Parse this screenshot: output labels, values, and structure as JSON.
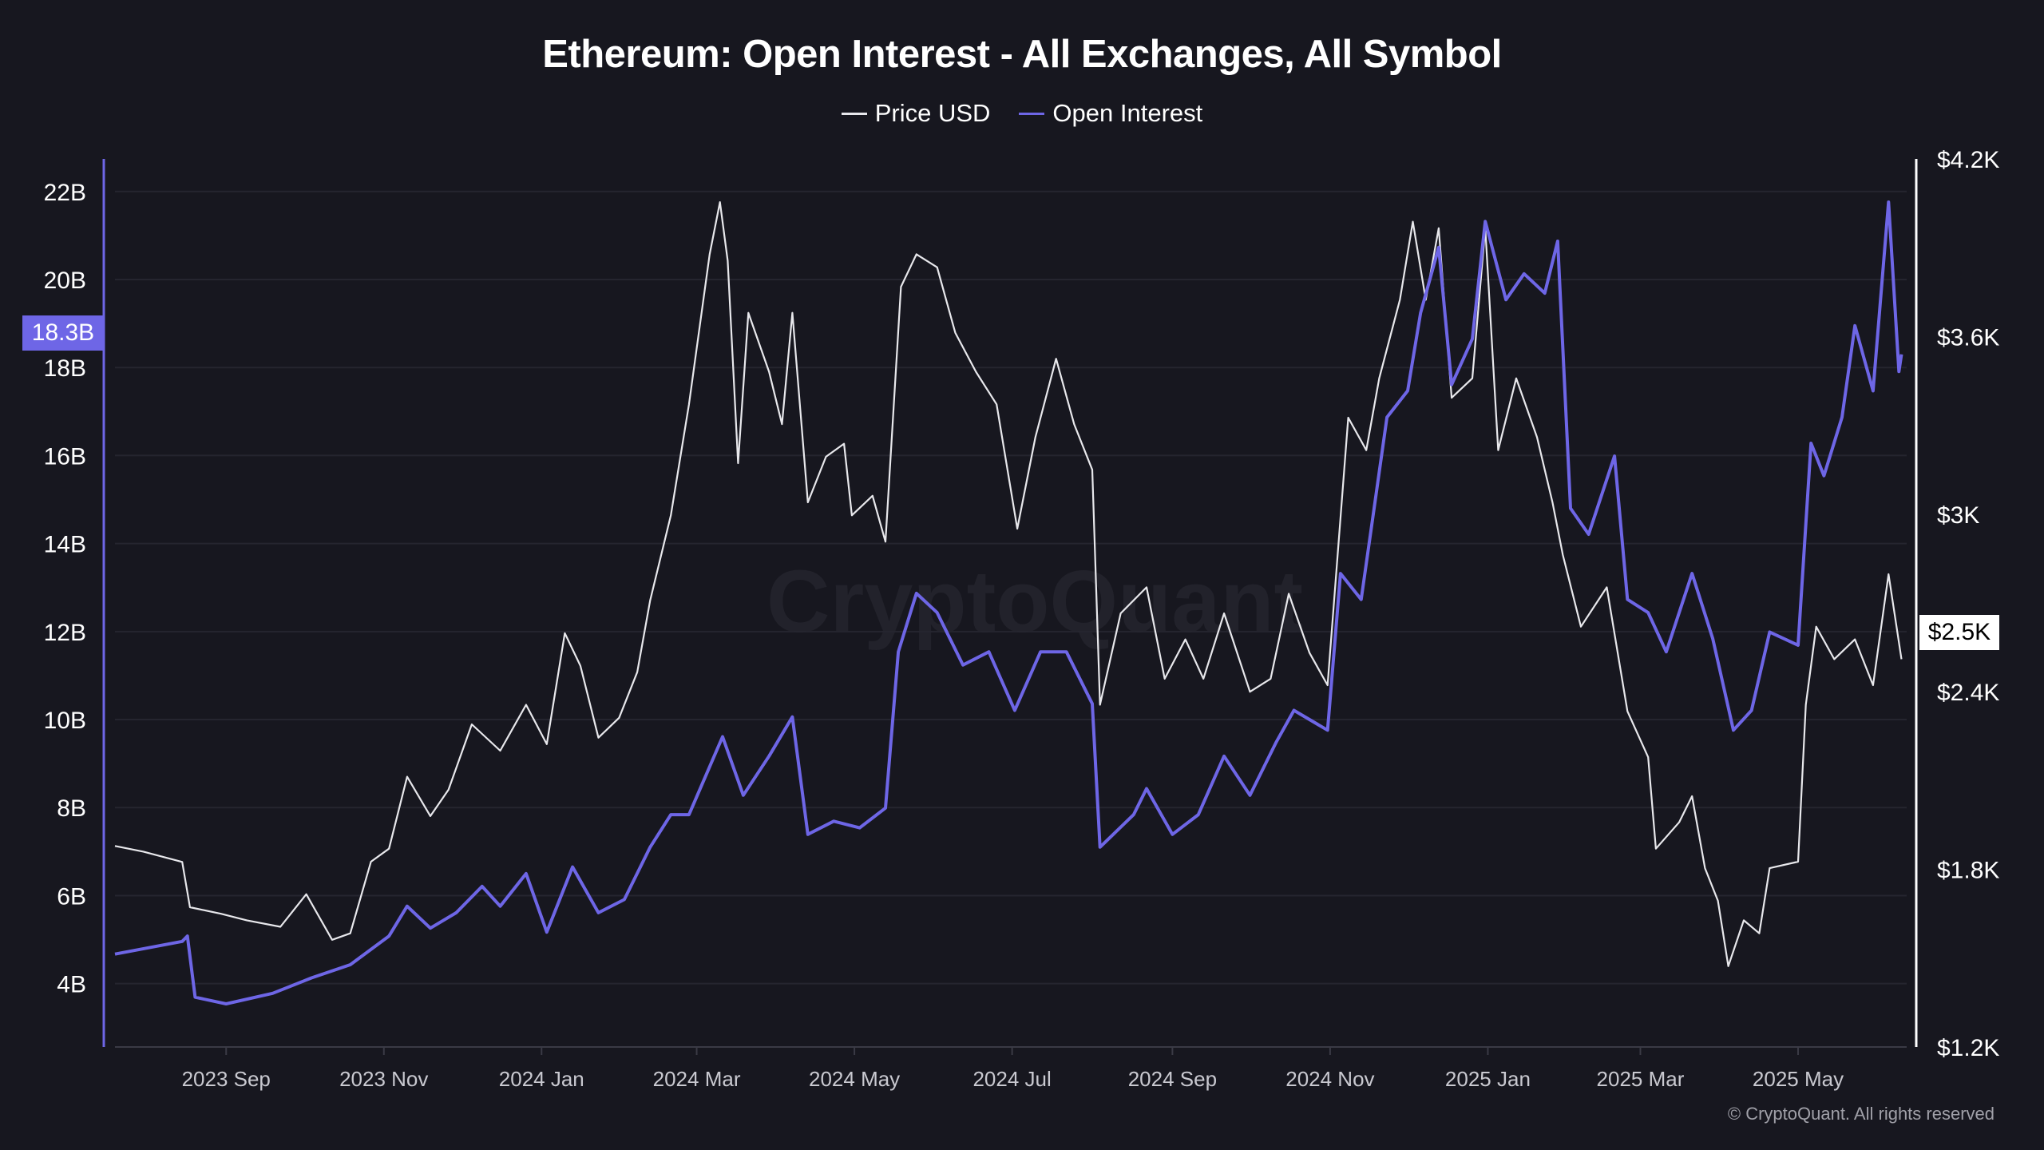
{
  "chart_data": {
    "type": "line",
    "title": "Ethereum: Open Interest - All Exchanges, All Symbol",
    "legend_placement": "top-center",
    "grid": true,
    "x_range": [
      "2023-07-20",
      "2025-06-12"
    ],
    "x_ticks": [
      "2023 Sep",
      "2023 Nov",
      "2024 Jan",
      "2024 Mar",
      "2024 May",
      "2024 Jul",
      "2024 Sep",
      "2024 Nov",
      "2025 Jan",
      "2025 Mar",
      "2025 May"
    ],
    "x_tick_dates": [
      "2023-09-01",
      "2023-11-01",
      "2024-01-01",
      "2024-03-01",
      "2024-05-01",
      "2024-07-01",
      "2024-09-01",
      "2024-11-01",
      "2025-01-01",
      "2025-03-01",
      "2025-05-01"
    ],
    "left_axis": {
      "ticks": [
        "4B",
        "6B",
        "8B",
        "10B",
        "12B",
        "14B",
        "16B",
        "18B",
        "20B",
        "22B"
      ],
      "tick_values": [
        4,
        6,
        8,
        10,
        12,
        14,
        16,
        18,
        20,
        22
      ],
      "range": [
        2.56,
        22.74
      ],
      "unit": "B USD",
      "color": "#6e66e6"
    },
    "right_axis": {
      "ticks": [
        "$1.2K",
        "$1.8K",
        "$2.4K",
        "$3K",
        "$3.6K",
        "$4.2K"
      ],
      "tick_values": [
        1200,
        1800,
        2400,
        3000,
        3600,
        4200
      ],
      "range": [
        1200,
        4200
      ],
      "color": "#ffffff"
    },
    "series": [
      {
        "name": "Price USD",
        "axis": "right",
        "color": "#e8e8ec",
        "points": [
          [
            "2023-07-20",
            1879
          ],
          [
            "2023-07-31",
            1860
          ],
          [
            "2023-08-15",
            1825
          ],
          [
            "2023-08-18",
            1672
          ],
          [
            "2023-08-30",
            1650
          ],
          [
            "2023-09-09",
            1628
          ],
          [
            "2023-09-22",
            1606
          ],
          [
            "2023-10-02",
            1716
          ],
          [
            "2023-10-12",
            1562
          ],
          [
            "2023-10-19",
            1584
          ],
          [
            "2023-10-27",
            1826
          ],
          [
            "2023-11-03",
            1870
          ],
          [
            "2023-11-10",
            2113
          ],
          [
            "2023-11-19",
            1980
          ],
          [
            "2023-11-26",
            2069
          ],
          [
            "2023-12-05",
            2290
          ],
          [
            "2023-12-16",
            2201
          ],
          [
            "2023-12-26",
            2356
          ],
          [
            "2024-01-03",
            2223
          ],
          [
            "2024-01-10",
            2598
          ],
          [
            "2024-01-16",
            2488
          ],
          [
            "2024-01-23",
            2245
          ],
          [
            "2024-01-31",
            2312
          ],
          [
            "2024-02-07",
            2466
          ],
          [
            "2024-02-12",
            2709
          ],
          [
            "2024-02-20",
            2996
          ],
          [
            "2024-02-27",
            3371
          ],
          [
            "2024-03-06",
            3878
          ],
          [
            "2024-03-10",
            4054
          ],
          [
            "2024-03-13",
            3856
          ],
          [
            "2024-03-17",
            3172
          ],
          [
            "2024-03-21",
            3680
          ],
          [
            "2024-03-29",
            3481
          ],
          [
            "2024-04-03",
            3304
          ],
          [
            "2024-04-07",
            3680
          ],
          [
            "2024-04-13",
            3040
          ],
          [
            "2024-04-20",
            3194
          ],
          [
            "2024-04-27",
            3238
          ],
          [
            "2024-04-30",
            2996
          ],
          [
            "2024-05-08",
            3062
          ],
          [
            "2024-05-13",
            2907
          ],
          [
            "2024-05-19",
            3768
          ],
          [
            "2024-05-25",
            3878
          ],
          [
            "2024-06-02",
            3834
          ],
          [
            "2024-06-09",
            3613
          ],
          [
            "2024-06-17",
            3481
          ],
          [
            "2024-06-25",
            3371
          ],
          [
            "2024-07-03",
            2951
          ],
          [
            "2024-07-10",
            3260
          ],
          [
            "2024-07-18",
            3525
          ],
          [
            "2024-07-25",
            3304
          ],
          [
            "2024-08-01",
            3150
          ],
          [
            "2024-08-04",
            2356
          ],
          [
            "2024-08-12",
            2665
          ],
          [
            "2024-08-22",
            2753
          ],
          [
            "2024-08-29",
            2444
          ],
          [
            "2024-09-06",
            2577
          ],
          [
            "2024-09-13",
            2444
          ],
          [
            "2024-09-21",
            2665
          ],
          [
            "2024-10-01",
            2400
          ],
          [
            "2024-10-09",
            2444
          ],
          [
            "2024-10-16",
            2731
          ],
          [
            "2024-10-24",
            2532
          ],
          [
            "2024-10-31",
            2422
          ],
          [
            "2024-11-08",
            3326
          ],
          [
            "2024-11-15",
            3216
          ],
          [
            "2024-11-20",
            3459
          ],
          [
            "2024-11-28",
            3724
          ],
          [
            "2024-12-03",
            3988
          ],
          [
            "2024-12-08",
            3724
          ],
          [
            "2024-12-13",
            3966
          ],
          [
            "2024-12-18",
            3393
          ],
          [
            "2024-12-26",
            3459
          ],
          [
            "2024-12-31",
            3966
          ],
          [
            "2025-01-05",
            3216
          ],
          [
            "2025-01-12",
            3459
          ],
          [
            "2025-01-20",
            3260
          ],
          [
            "2025-01-26",
            3040
          ],
          [
            "2025-01-30",
            2863
          ],
          [
            "2025-02-06",
            2620
          ],
          [
            "2025-02-16",
            2753
          ],
          [
            "2025-02-24",
            2334
          ],
          [
            "2025-03-04",
            2179
          ],
          [
            "2025-03-07",
            1870
          ],
          [
            "2025-03-16",
            1959
          ],
          [
            "2025-03-21",
            2047
          ],
          [
            "2025-03-26",
            1804
          ],
          [
            "2025-03-31",
            1694
          ],
          [
            "2025-04-04",
            1473
          ],
          [
            "2025-04-10",
            1628
          ],
          [
            "2025-04-16",
            1584
          ],
          [
            "2025-04-20",
            1804
          ],
          [
            "2025-05-01",
            1826
          ],
          [
            "2025-05-04",
            2356
          ],
          [
            "2025-05-08",
            2620
          ],
          [
            "2025-05-15",
            2510
          ],
          [
            "2025-05-23",
            2577
          ],
          [
            "2025-05-30",
            2422
          ],
          [
            "2025-06-05",
            2797
          ],
          [
            "2025-06-10",
            2510
          ]
        ]
      },
      {
        "name": "Open Interest",
        "axis": "left",
        "color": "#6e66e6",
        "points": [
          [
            "2023-07-20",
            4.67
          ],
          [
            "2023-08-15",
            4.96
          ],
          [
            "2023-08-17",
            5.08
          ],
          [
            "2023-08-20",
            3.69
          ],
          [
            "2023-09-01",
            3.54
          ],
          [
            "2023-09-19",
            3.78
          ],
          [
            "2023-10-04",
            4.13
          ],
          [
            "2023-10-19",
            4.43
          ],
          [
            "2023-11-03",
            5.08
          ],
          [
            "2023-11-10",
            5.76
          ],
          [
            "2023-11-19",
            5.26
          ],
          [
            "2023-11-29",
            5.61
          ],
          [
            "2023-12-09",
            6.21
          ],
          [
            "2023-12-16",
            5.76
          ],
          [
            "2023-12-26",
            6.5
          ],
          [
            "2024-01-03",
            5.17
          ],
          [
            "2024-01-13",
            6.65
          ],
          [
            "2024-01-23",
            5.61
          ],
          [
            "2024-02-02",
            5.91
          ],
          [
            "2024-02-12",
            7.1
          ],
          [
            "2024-02-20",
            7.84
          ],
          [
            "2024-02-27",
            7.84
          ],
          [
            "2024-03-11",
            9.61
          ],
          [
            "2024-03-19",
            8.28
          ],
          [
            "2024-03-29",
            9.17
          ],
          [
            "2024-04-07",
            10.06
          ],
          [
            "2024-04-13",
            7.39
          ],
          [
            "2024-04-23",
            7.69
          ],
          [
            "2024-05-03",
            7.54
          ],
          [
            "2024-05-13",
            7.99
          ],
          [
            "2024-05-18",
            11.54
          ],
          [
            "2024-05-25",
            12.87
          ],
          [
            "2024-06-02",
            12.43
          ],
          [
            "2024-06-12",
            11.24
          ],
          [
            "2024-06-22",
            11.54
          ],
          [
            "2024-07-02",
            10.21
          ],
          [
            "2024-07-12",
            11.54
          ],
          [
            "2024-07-22",
            11.54
          ],
          [
            "2024-08-01",
            10.36
          ],
          [
            "2024-08-04",
            7.1
          ],
          [
            "2024-08-17",
            7.84
          ],
          [
            "2024-08-22",
            8.43
          ],
          [
            "2024-09-01",
            7.39
          ],
          [
            "2024-09-11",
            7.84
          ],
          [
            "2024-09-21",
            9.17
          ],
          [
            "2024-10-01",
            8.28
          ],
          [
            "2024-10-11",
            9.47
          ],
          [
            "2024-10-18",
            10.21
          ],
          [
            "2024-10-31",
            9.76
          ],
          [
            "2024-11-05",
            13.32
          ],
          [
            "2024-11-13",
            12.73
          ],
          [
            "2024-11-18",
            14.8
          ],
          [
            "2024-11-23",
            16.87
          ],
          [
            "2024-12-01",
            17.47
          ],
          [
            "2024-12-06",
            19.24
          ],
          [
            "2024-12-13",
            20.73
          ],
          [
            "2024-12-18",
            17.61
          ],
          [
            "2024-12-26",
            18.65
          ],
          [
            "2024-12-31",
            21.32
          ],
          [
            "2025-01-08",
            19.54
          ],
          [
            "2025-01-15",
            20.13
          ],
          [
            "2025-01-23",
            19.69
          ],
          [
            "2025-01-28",
            20.87
          ],
          [
            "2025-02-02",
            14.8
          ],
          [
            "2025-02-09",
            14.21
          ],
          [
            "2025-02-19",
            15.99
          ],
          [
            "2025-02-24",
            12.73
          ],
          [
            "2025-03-04",
            12.43
          ],
          [
            "2025-03-11",
            11.54
          ],
          [
            "2025-03-21",
            13.32
          ],
          [
            "2025-03-29",
            11.84
          ],
          [
            "2025-04-06",
            9.76
          ],
          [
            "2025-04-13",
            10.21
          ],
          [
            "2025-04-20",
            11.99
          ],
          [
            "2025-05-01",
            11.69
          ],
          [
            "2025-05-06",
            16.28
          ],
          [
            "2025-05-11",
            15.54
          ],
          [
            "2025-05-18",
            16.87
          ],
          [
            "2025-05-23",
            18.95
          ],
          [
            "2025-05-30",
            17.47
          ],
          [
            "2025-06-05",
            21.76
          ],
          [
            "2025-06-09",
            17.91
          ],
          [
            "2025-06-10",
            18.3
          ]
        ]
      }
    ],
    "last_value_labels": {
      "open_interest": "18.3B",
      "price": "$2.5K"
    }
  },
  "legend": {
    "price": "Price USD",
    "open_interest": "Open Interest"
  },
  "watermark": "CryptoQuant",
  "copyright": "© CryptoQuant. All rights reserved"
}
